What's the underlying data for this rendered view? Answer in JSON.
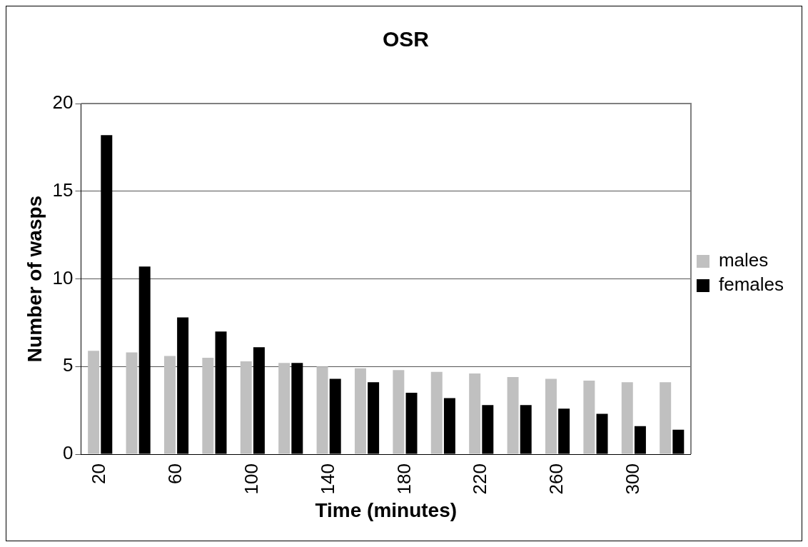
{
  "chart_data": {
    "type": "bar",
    "title": "OSR",
    "xlabel": "Time (minutes)",
    "ylabel": "Number of wasps",
    "categories": [
      "20",
      null,
      "60",
      null,
      "100",
      null,
      "140",
      null,
      "180",
      null,
      "220",
      null,
      "260",
      null,
      "300",
      null
    ],
    "series": [
      {
        "name": "males",
        "color": "#c0c0c0",
        "values": [
          5.9,
          5.8,
          5.6,
          5.5,
          5.3,
          5.2,
          5.0,
          4.9,
          4.8,
          4.7,
          4.6,
          4.4,
          4.3,
          4.2,
          4.1,
          4.1
        ]
      },
      {
        "name": "females",
        "color": "#000000",
        "values": [
          18.2,
          10.7,
          7.8,
          7.0,
          6.1,
          5.2,
          4.3,
          4.1,
          3.5,
          3.2,
          2.8,
          2.8,
          2.6,
          2.3,
          1.6,
          1.4
        ]
      }
    ],
    "ylim": [
      0,
      20
    ],
    "yticks": [
      0,
      5,
      10,
      15,
      20
    ],
    "grid": "y",
    "legend": "right"
  }
}
